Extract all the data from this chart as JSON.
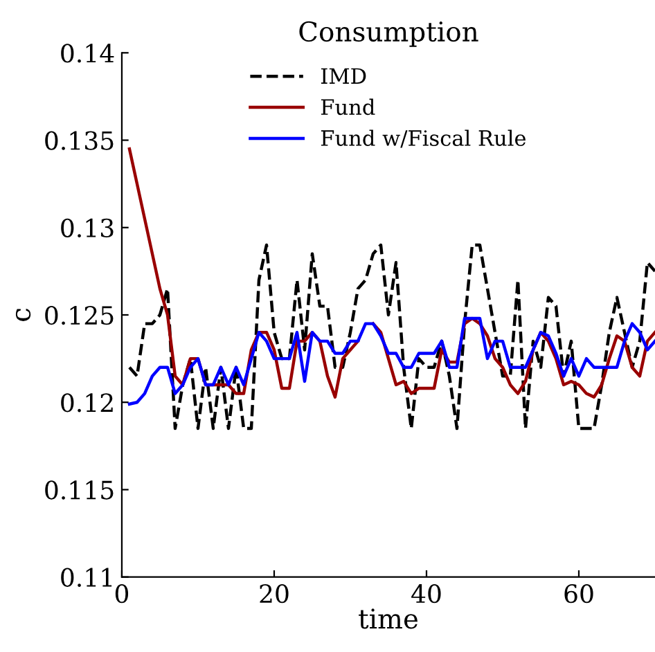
{
  "chart_data": {
    "type": "line",
    "title": "Consumption",
    "xlabel": "time",
    "ylabel": "c",
    "x": [
      1,
      2,
      3,
      4,
      5,
      6,
      7,
      8,
      9,
      10,
      11,
      12,
      13,
      14,
      15,
      16,
      17,
      18,
      19,
      20,
      21,
      22,
      23,
      24,
      25,
      26,
      27,
      28,
      29,
      30,
      31,
      32,
      33,
      34,
      35,
      36,
      37,
      38,
      39,
      40,
      41,
      42,
      43,
      44,
      45,
      46,
      47,
      48,
      49,
      50,
      51,
      52,
      53,
      54,
      55,
      56,
      57,
      58,
      59,
      60,
      61,
      62,
      63,
      64,
      65,
      66,
      67,
      68,
      69,
      70
    ],
    "series": [
      {
        "name": "IMD",
        "color": "#000000",
        "line_style": "dashed",
        "values": [
          0.122,
          0.1215,
          0.1245,
          0.1245,
          0.125,
          0.1265,
          0.1185,
          0.121,
          0.1225,
          0.1185,
          0.122,
          0.1185,
          0.122,
          0.1185,
          0.122,
          0.1185,
          0.1185,
          0.127,
          0.129,
          0.124,
          0.1225,
          0.1225,
          0.127,
          0.123,
          0.1285,
          0.1255,
          0.1255,
          0.122,
          0.122,
          0.124,
          0.1265,
          0.127,
          0.1285,
          0.129,
          0.125,
          0.128,
          0.122,
          0.1185,
          0.1225,
          0.122,
          0.122,
          0.1235,
          0.1215,
          0.1185,
          0.1245,
          0.129,
          0.129,
          0.1265,
          0.124,
          0.1215,
          0.1215,
          0.127,
          0.1185,
          0.1235,
          0.122,
          0.126,
          0.1255,
          0.1215,
          0.1235,
          0.1185,
          0.1185,
          0.1185,
          0.121,
          0.124,
          0.126,
          0.124,
          0.122,
          0.1235,
          0.128,
          0.1275
        ]
      },
      {
        "name": "Fund",
        "color": "#990000",
        "line_style": "solid",
        "values": [
          0.1345,
          0.1325,
          0.1305,
          0.1285,
          0.1265,
          0.125,
          0.1215,
          0.121,
          0.1225,
          0.1225,
          0.121,
          0.121,
          0.121,
          0.121,
          0.1205,
          0.1205,
          0.123,
          0.124,
          0.124,
          0.123,
          0.1208,
          0.1208,
          0.1235,
          0.1235,
          0.124,
          0.1235,
          0.1215,
          0.1203,
          0.1225,
          0.123,
          0.1235,
          null,
          0.1245,
          0.124,
          0.1225,
          0.121,
          0.1212,
          0.1205,
          0.1208,
          0.1208,
          0.1208,
          0.123,
          0.1223,
          0.1223,
          0.1245,
          0.1248,
          0.1245,
          0.1238,
          0.1225,
          0.122,
          0.121,
          0.1205,
          0.1212,
          0.123,
          0.124,
          0.1235,
          0.1225,
          0.121,
          0.1212,
          0.121,
          0.1205,
          0.1203,
          0.121,
          0.1225,
          0.1238,
          0.1235,
          0.122,
          0.1215,
          0.1235,
          0.124
        ]
      },
      {
        "name": "Fund w/Fiscal Rule",
        "color": "#0000ff",
        "line_style": "solid",
        "values": [
          0.1199,
          0.12,
          0.1205,
          0.1215,
          0.122,
          0.122,
          0.1205,
          0.121,
          0.122,
          0.1225,
          0.121,
          0.121,
          0.122,
          0.121,
          0.122,
          0.121,
          0.1225,
          0.124,
          0.1235,
          0.1225,
          0.1225,
          0.1225,
          0.124,
          0.1212,
          0.124,
          0.1235,
          0.1235,
          0.1228,
          0.1228,
          0.1235,
          0.1235,
          0.1245,
          0.1245,
          0.1238,
          0.1228,
          0.1228,
          0.122,
          0.122,
          0.1228,
          0.1228,
          0.1228,
          0.1235,
          0.122,
          0.122,
          0.1248,
          0.1248,
          0.1248,
          0.1225,
          0.1235,
          0.1235,
          0.122,
          0.122,
          0.122,
          0.123,
          0.124,
          0.1238,
          0.1228,
          0.1215,
          0.1225,
          0.1215,
          0.1225,
          0.122,
          0.122,
          0.122,
          0.122,
          0.1235,
          0.1245,
          0.124,
          0.123,
          0.1235
        ]
      }
    ],
    "xlim": [
      0,
      70
    ],
    "xticks": [
      0,
      20,
      40,
      60
    ],
    "ylim": [
      0.11,
      0.14
    ],
    "yticks": [
      0.11,
      0.115,
      0.12,
      0.125,
      0.13,
      0.135,
      0.14
    ],
    "grid": false,
    "legend": "top"
  }
}
